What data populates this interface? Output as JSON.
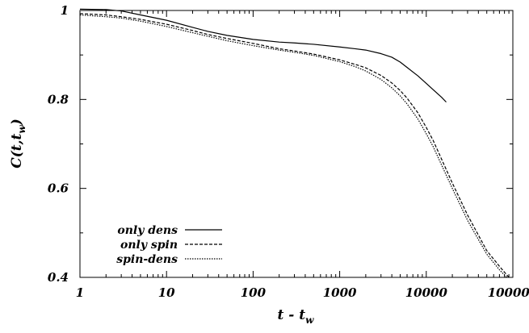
{
  "chart_data": {
    "type": "line",
    "xscale": "log",
    "xlim": [
      1,
      100000
    ],
    "ylim": [
      0.4,
      1.0
    ],
    "x_ticks": [
      "1",
      "10",
      "100",
      "1000",
      "10000",
      "100000"
    ],
    "y_ticks": [
      "0.4",
      "0.6",
      "0.8",
      "1"
    ],
    "xlabel": {
      "main": "t - t",
      "sub": "w"
    },
    "ylabel": {
      "main": "C(t,t",
      "sub": "w",
      "tail": ")"
    },
    "legend_position": "bottom-left",
    "grid": false,
    "series": [
      {
        "name": "only dens",
        "dash": "solid",
        "x": [
          1,
          2,
          3,
          5,
          10,
          20,
          30,
          50,
          100,
          200,
          300,
          500,
          1000,
          1500,
          2000,
          3000,
          4000,
          5000,
          6000,
          8000,
          10000,
          12000,
          15000,
          17000
        ],
        "y": [
          1.003,
          1.002,
          0.999,
          0.99,
          0.978,
          0.962,
          0.953,
          0.944,
          0.935,
          0.929,
          0.927,
          0.924,
          0.918,
          0.914,
          0.911,
          0.903,
          0.895,
          0.884,
          0.872,
          0.853,
          0.836,
          0.822,
          0.805,
          0.794
        ]
      },
      {
        "name": "only spin",
        "dash": "dashed",
        "x": [
          1,
          2,
          3,
          5,
          10,
          20,
          30,
          50,
          100,
          200,
          300,
          500,
          1000,
          1500,
          2000,
          3000,
          4000,
          5000,
          6000,
          8000,
          10000,
          12000,
          15000,
          20000,
          30000,
          50000,
          70000,
          90000
        ],
        "y": [
          0.993,
          0.99,
          0.986,
          0.98,
          0.969,
          0.955,
          0.946,
          0.937,
          0.926,
          0.914,
          0.909,
          0.902,
          0.889,
          0.879,
          0.871,
          0.854,
          0.837,
          0.82,
          0.803,
          0.77,
          0.737,
          0.708,
          0.666,
          0.612,
          0.54,
          0.46,
          0.425,
          0.4
        ]
      },
      {
        "name": "spin-dens",
        "dash": "dotted",
        "x": [
          1,
          2,
          3,
          5,
          10,
          20,
          30,
          50,
          100,
          200,
          300,
          500,
          1000,
          1500,
          2000,
          3000,
          4000,
          5000,
          6000,
          8000,
          10000,
          12000,
          15000,
          20000,
          30000,
          50000,
          70000,
          85000
        ],
        "y": [
          0.99,
          0.986,
          0.983,
          0.976,
          0.964,
          0.95,
          0.942,
          0.932,
          0.921,
          0.911,
          0.906,
          0.899,
          0.885,
          0.874,
          0.864,
          0.845,
          0.826,
          0.808,
          0.79,
          0.756,
          0.723,
          0.694,
          0.653,
          0.6,
          0.528,
          0.452,
          0.417,
          0.4
        ]
      }
    ]
  }
}
